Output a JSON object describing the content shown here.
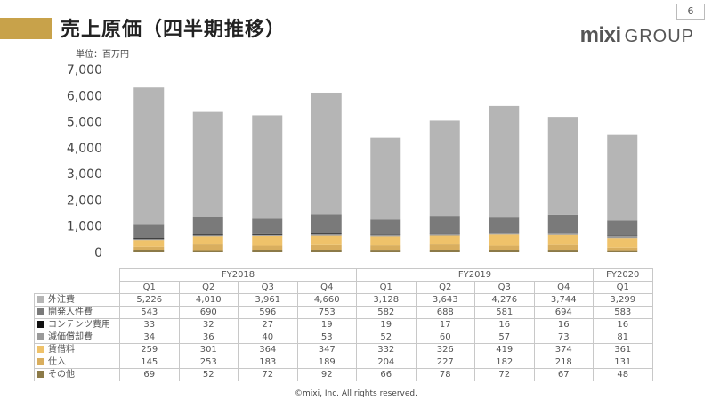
{
  "header": {
    "title": "売上原価（四半期推移）",
    "page_number": "6",
    "logo_mixi": "mixi",
    "logo_group": "GROUP",
    "unit": "単位：百万円"
  },
  "footer": {
    "copyright": "©mixi, Inc. All rights reserved."
  },
  "colors": {
    "accent": "#c8a24a"
  },
  "chart_data": {
    "type": "bar",
    "stacked": true,
    "y_ticks": [
      "0",
      "1,000",
      "2,000",
      "3,000",
      "4,000",
      "5,000",
      "6,000",
      "7,000"
    ],
    "ylim": [
      0,
      7000
    ],
    "grid": false,
    "legend": "table-below",
    "fiscal_years": [
      {
        "label": "FY2018",
        "quarters": 4
      },
      {
        "label": "FY2019",
        "quarters": 4
      },
      {
        "label": "FY2020",
        "quarters": 1
      }
    ],
    "categories": [
      "Q1",
      "Q2",
      "Q3",
      "Q4",
      "Q1",
      "Q2",
      "Q3",
      "Q4",
      "Q1"
    ],
    "series": [
      {
        "name": "外注費",
        "color": "#b5b5b5",
        "values": [
          5226,
          4010,
          3961,
          4660,
          3128,
          3643,
          4276,
          3744,
          3299
        ],
        "labels": [
          "5,226",
          "4,010",
          "3,961",
          "4,660",
          "3,128",
          "3,643",
          "4,276",
          "3,744",
          "3,299"
        ]
      },
      {
        "name": "開発人件費",
        "color": "#7a7a7a",
        "values": [
          543,
          690,
          596,
          753,
          582,
          688,
          581,
          694,
          583
        ],
        "labels": [
          "543",
          "690",
          "596",
          "753",
          "582",
          "688",
          "581",
          "694",
          "583"
        ]
      },
      {
        "name": "コンテンツ費用",
        "color": "#111111",
        "values": [
          33,
          32,
          27,
          19,
          19,
          17,
          16,
          16,
          16
        ],
        "labels": [
          "33",
          "32",
          "27",
          "19",
          "19",
          "17",
          "16",
          "16",
          "16"
        ]
      },
      {
        "name": "減価償却費",
        "color": "#9a9a9a",
        "values": [
          34,
          36,
          40,
          53,
          52,
          60,
          57,
          73,
          81
        ],
        "labels": [
          "34",
          "36",
          "40",
          "53",
          "52",
          "60",
          "57",
          "73",
          "81"
        ]
      },
      {
        "name": "賃借料",
        "color": "#efc26a",
        "values": [
          259,
          301,
          364,
          347,
          332,
          326,
          419,
          374,
          361
        ],
        "labels": [
          "259",
          "301",
          "364",
          "347",
          "332",
          "326",
          "419",
          "374",
          "361"
        ]
      },
      {
        "name": "仕入",
        "color": "#d9ae5e",
        "values": [
          145,
          253,
          183,
          189,
          204,
          227,
          182,
          218,
          131
        ],
        "labels": [
          "145",
          "253",
          "183",
          "189",
          "204",
          "227",
          "182",
          "218",
          "131"
        ]
      },
      {
        "name": "その他",
        "color": "#8c7a48",
        "values": [
          69,
          52,
          72,
          92,
          66,
          78,
          72,
          67,
          48
        ],
        "labels": [
          "69",
          "52",
          "72",
          "92",
          "66",
          "78",
          "72",
          "67",
          "48"
        ]
      }
    ]
  }
}
